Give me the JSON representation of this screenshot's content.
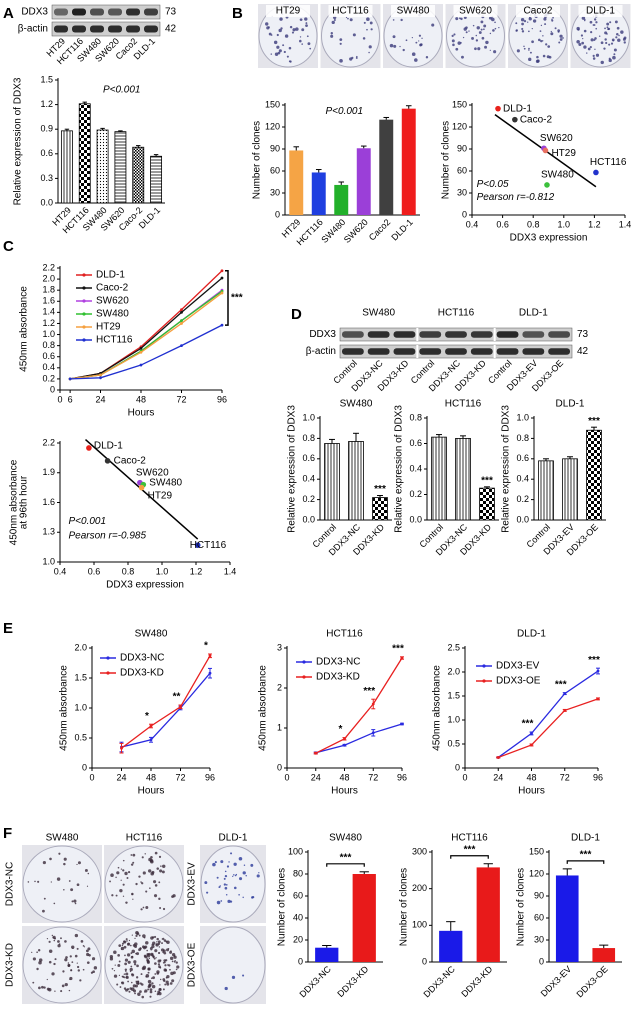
{
  "panel_labels": [
    "A",
    "B",
    "C",
    "D",
    "E",
    "F"
  ],
  "blots": [
    {
      "lanes": [
        "HT29",
        "HCT116",
        "SW480",
        "SW620",
        "Caco2",
        "DLD-1"
      ],
      "rows": [
        "DDX3",
        "β-actin"
      ],
      "sizes": [
        73,
        42
      ]
    },
    {
      "groups": [
        "SW480",
        "HCT116",
        "DLD-1"
      ],
      "lanes": [
        "Control",
        "DDX3-NC",
        "DDX3-KD",
        "Control",
        "DDX3-NC",
        "DDX3-KD",
        "Control",
        "DDX3-EV",
        "DDX3-OE"
      ],
      "rows": [
        "DDX3",
        "β-actin"
      ],
      "sizes": [
        73,
        42
      ]
    }
  ],
  "colony_images": [
    {
      "labels": [
        "HT29",
        "HCT116",
        "SW480",
        "SW620",
        "Caco2",
        "DLD-1"
      ]
    },
    {
      "columns": [
        "SW480",
        "HCT116",
        "DLD-1"
      ],
      "rows": [
        "DDX3-NC",
        "DDX3-KD"
      ],
      "rows_dld1": [
        "DDX3-EV",
        "DDX3-OE"
      ]
    }
  ],
  "chart_data": [
    {
      "type": "bar",
      "categories": [
        "HT29",
        "HCT116",
        "SW480",
        "SW620",
        "Caco-2",
        "DLD-1"
      ],
      "values": [
        0.88,
        1.21,
        0.89,
        0.87,
        0.68,
        0.57
      ],
      "errors": [
        0.02,
        0.02,
        0.02,
        0.01,
        0.02,
        0.02
      ],
      "patterns": [
        "vlines",
        "checker",
        "dots",
        "hlines",
        "dense",
        "hlines"
      ],
      "ylabel": "Relative expression of DDX3",
      "annotations": [
        "P<0.001"
      ],
      "ylim": [
        0,
        1.5
      ],
      "yticks": [
        {
          "value": 0,
          "label": "0.0"
        },
        0.3,
        0.6,
        0.9,
        1.2,
        1.5
      ]
    },
    {
      "type": "bar",
      "categories": [
        "HT29",
        "HCT116",
        "SW480",
        "SW620",
        "Caco2",
        "DLD-1"
      ],
      "values": [
        88,
        58,
        41,
        91,
        130,
        145
      ],
      "errors": [
        5,
        4,
        4,
        3,
        3,
        4
      ],
      "colors": [
        "#f5a445",
        "#1f3fe0",
        "#22b02a",
        "#9b3fd8",
        "#404040",
        "#ef1c1c"
      ],
      "ylabel": "Number of clones",
      "annotations": [
        "P<0.001"
      ],
      "ylim": [
        0,
        150
      ],
      "yticks": [
        0,
        30,
        60,
        90,
        120,
        150
      ]
    },
    {
      "type": "scatter",
      "labels": [
        "DLD-1",
        "Caco-2",
        "SW620",
        "HT29",
        "SW480",
        "HCT116"
      ],
      "x": [
        0.57,
        0.68,
        0.87,
        0.88,
        0.89,
        1.21
      ],
      "values": [
        145,
        130,
        91,
        88,
        41,
        58
      ],
      "colors": [
        "#e8221c",
        "#333333",
        "#9b3fd8",
        "#e87060",
        "#3cc03c",
        "#2233cc"
      ],
      "xlabel": "DDX3 expression",
      "ylabel": "Number of clones",
      "annotations": [
        "P<0.05",
        "Pearson r=-0.812"
      ],
      "xlim": [
        0.4,
        1.4
      ],
      "xticks": [
        0.4,
        0.6,
        0.8,
        {
          "value": 1,
          "label": "1.0"
        },
        1.2,
        1.4
      ],
      "ylim": [
        0,
        150
      ],
      "yticks": [
        0,
        30,
        60,
        90,
        120,
        150
      ]
    },
    {
      "type": "line",
      "x": [
        6,
        24,
        48,
        72,
        96
      ],
      "series": [
        {
          "name": "DLD-1",
          "color": "#e02020",
          "values": [
            0.2,
            0.3,
            0.78,
            1.45,
            2.15
          ]
        },
        {
          "name": "Caco-2",
          "color": "#111111",
          "values": [
            0.2,
            0.3,
            0.75,
            1.4,
            2.02
          ]
        },
        {
          "name": "SW620",
          "color": "#b040e0",
          "values": [
            0.2,
            0.27,
            0.7,
            1.25,
            1.8
          ]
        },
        {
          "name": "SW480",
          "color": "#30c030",
          "values": [
            0.2,
            0.27,
            0.7,
            1.25,
            1.78
          ]
        },
        {
          "name": "HT29",
          "color": "#f5a040",
          "values": [
            0.2,
            0.27,
            0.68,
            1.2,
            1.75
          ]
        },
        {
          "name": "HCT116",
          "color": "#2030d0",
          "values": [
            0.2,
            0.22,
            0.45,
            0.8,
            1.17
          ]
        }
      ],
      "xlabel": "Hours",
      "ylabel": "450nm absorbance",
      "annotations": [
        "***"
      ],
      "xlim": [
        0,
        96
      ],
      "xticks": [
        0,
        6,
        24,
        48,
        72,
        96
      ],
      "ylim": [
        0,
        2.2
      ],
      "yticks": [
        0,
        0.2,
        0.4,
        0.6,
        0.8,
        {
          "value": 1,
          "label": "1.0"
        },
        1.2,
        1.4,
        1.6,
        1.8,
        {
          "value": 2,
          "label": "2.0"
        },
        2.2
      ]
    },
    {
      "type": "scatter",
      "labels": [
        "DLD-1",
        "Caco-2",
        "SW620",
        "SW480",
        "HT29",
        "HCT116"
      ],
      "x": [
        0.57,
        0.68,
        0.87,
        0.89,
        0.88,
        1.21
      ],
      "values": [
        2.15,
        2.02,
        1.8,
        1.78,
        1.75,
        1.17
      ],
      "colors": [
        "#e8221c",
        "#333333",
        "#9b3fd8",
        "#3cc03c",
        "#f5a040",
        "#2233cc"
      ],
      "xlabel": "DDX3 expression",
      "ylabel": [
        "450nm absorbance",
        "at 96th hour"
      ],
      "annotations": [
        "P<0.001",
        "Pearson r=-0.985"
      ],
      "xlim": [
        0.4,
        1.4
      ],
      "xticks": [
        0.4,
        0.6,
        0.8,
        {
          "value": 1,
          "label": "1.0"
        },
        1.2,
        1.4
      ],
      "ylim": [
        1,
        2.2
      ],
      "yticks": [
        {
          "value": 1,
          "label": "1.0"
        },
        1.3,
        1.6,
        1.9,
        2.2
      ]
    },
    {
      "type": "bar",
      "title": "SW480",
      "categories": [
        "Control",
        "DDX3-NC",
        "DDX3-KD"
      ],
      "values": [
        0.75,
        0.77,
        0.22
      ],
      "errors": [
        0.04,
        0.08,
        0.02
      ],
      "significance": [
        null,
        null,
        "***"
      ],
      "patterns": [
        "vlines",
        "vlines",
        "checker"
      ],
      "ylabel": "Relative expression of DDX3",
      "ylim": [
        0,
        1
      ],
      "yticks": [
        {
          "value": 0,
          "label": "0.0"
        },
        0.2,
        0.4,
        0.6,
        0.8,
        {
          "value": 1,
          "label": "1.0"
        }
      ]
    },
    {
      "type": "bar",
      "title": "HCT116",
      "categories": [
        "Control",
        "DDX3-NC",
        "DDX3-KD"
      ],
      "values": [
        0.65,
        0.64,
        0.25
      ],
      "errors": [
        0.02,
        0.02,
        0.01
      ],
      "significance": [
        null,
        null,
        "***"
      ],
      "patterns": [
        "vlines",
        "vlines",
        "checker"
      ],
      "ylabel": "Relative expression of DDX3",
      "ylim": [
        0,
        0.8
      ],
      "yticks": [
        {
          "value": 0,
          "label": "0.0"
        },
        0.2,
        0.4,
        0.6,
        0.8
      ]
    },
    {
      "type": "bar",
      "title": "DLD-1",
      "categories": [
        "Control",
        "DDX3-EV",
        "DDX3-OE"
      ],
      "values": [
        0.58,
        0.6,
        0.88
      ],
      "errors": [
        0.02,
        0.02,
        0.03
      ],
      "significance": [
        null,
        null,
        "***"
      ],
      "patterns": [
        "vlines",
        "vlines",
        "checker"
      ],
      "ylabel": "Relative expression of DDX3",
      "ylim": [
        0,
        1
      ],
      "yticks": [
        {
          "value": 0,
          "label": "0.0"
        },
        0.2,
        0.4,
        0.6,
        0.8,
        {
          "value": 1,
          "label": "1.0"
        }
      ]
    },
    {
      "type": "line",
      "title": "SW480",
      "x": [
        24,
        48,
        72,
        96
      ],
      "series": [
        {
          "name": "DDX3-NC",
          "color": "#2a2ae0",
          "values": [
            0.35,
            0.47,
            1.0,
            1.58
          ],
          "errors": [
            0.08,
            0.04,
            0.03,
            0.08
          ]
        },
        {
          "name": "DDX3-KD",
          "color": "#e82020",
          "values": [
            0.33,
            0.7,
            1.02,
            1.87
          ],
          "errors": [
            0.08,
            0.03,
            0.03,
            0.03
          ]
        }
      ],
      "significance": [
        null,
        "*",
        "**",
        "*"
      ],
      "xlabel": "Hours",
      "ylabel": "450nm absorbance",
      "xlim": [
        0,
        96
      ],
      "xticks": [
        0,
        24,
        48,
        72,
        96
      ],
      "ylim": [
        0,
        2
      ],
      "yticks": [
        0,
        0.5,
        {
          "value": 1,
          "label": "1.0"
        },
        1.5,
        {
          "value": 2,
          "label": "2.0"
        }
      ]
    },
    {
      "type": "line",
      "title": "HCT116",
      "x": [
        24,
        48,
        72,
        96
      ],
      "series": [
        {
          "name": "DDX3-NC",
          "color": "#2a2ae0",
          "values": [
            0.38,
            0.57,
            0.88,
            1.1
          ],
          "errors": [
            0.02,
            0.02,
            0.08,
            0.02
          ]
        },
        {
          "name": "DDX3-KD",
          "color": "#e82020",
          "values": [
            0.37,
            0.73,
            1.6,
            2.75
          ],
          "errors": [
            0.02,
            0.03,
            0.12,
            0.03
          ]
        }
      ],
      "significance": [
        null,
        "*",
        "***",
        "***"
      ],
      "xlabel": "Hours",
      "ylabel": "450nm absorbance",
      "xlim": [
        0,
        96
      ],
      "xticks": [
        0,
        24,
        48,
        72,
        96
      ],
      "ylim": [
        0,
        3
      ],
      "yticks": [
        0,
        1,
        2,
        3
      ]
    },
    {
      "type": "line",
      "title": "DLD-1",
      "x": [
        24,
        48,
        72,
        96
      ],
      "series": [
        {
          "name": "DDX3-EV",
          "color": "#2a2ae0",
          "values": [
            0.22,
            0.72,
            1.55,
            2.02
          ],
          "errors": [
            0.01,
            0.03,
            0.02,
            0.06
          ]
        },
        {
          "name": "DDX3-OE",
          "color": "#e82020",
          "values": [
            0.22,
            0.48,
            1.2,
            1.44
          ],
          "errors": [
            0.01,
            0.02,
            0.02,
            0.02
          ]
        }
      ],
      "significance": [
        null,
        "***",
        "***",
        "***"
      ],
      "xlabel": "Hours",
      "ylabel": "450nm absorbance",
      "xlim": [
        0,
        96
      ],
      "xticks": [
        0,
        24,
        48,
        72,
        96
      ],
      "ylim": [
        0,
        2.5
      ],
      "yticks": [
        0,
        0.5,
        {
          "value": 1,
          "label": "1.0"
        },
        1.5,
        {
          "value": 2,
          "label": "2.0"
        },
        2.5
      ]
    },
    {
      "type": "bar",
      "title": "SW480",
      "categories": [
        "DDX3-NC",
        "DDX3-KD"
      ],
      "values": [
        13,
        80
      ],
      "errors": [
        2,
        2
      ],
      "colors": [
        "#1a1ae8",
        "#e81a1a"
      ],
      "ylabel": "Number of clones",
      "annotations": [
        "***"
      ],
      "ylim": [
        0,
        100
      ],
      "yticks": [
        0,
        20,
        40,
        60,
        80,
        100
      ]
    },
    {
      "type": "bar",
      "title": "HCT116",
      "categories": [
        "DDX3-NC",
        "DDX3-KD"
      ],
      "values": [
        85,
        258
      ],
      "errors": [
        25,
        10
      ],
      "colors": [
        "#1a1ae8",
        "#e81a1a"
      ],
      "ylabel": "Number of clones",
      "annotations": [
        "***"
      ],
      "ylim": [
        0,
        300
      ],
      "yticks": [
        0,
        100,
        200,
        300
      ]
    },
    {
      "type": "bar",
      "title": "DLD-1",
      "categories": [
        "DDX3-EV",
        "DDX3-OE"
      ],
      "values": [
        118,
        19
      ],
      "errors": [
        9,
        4
      ],
      "colors": [
        "#1a1ae8",
        "#e81a1a"
      ],
      "ylabel": "Number of clones",
      "annotations": [
        "***"
      ],
      "ylim": [
        0,
        150
      ],
      "yticks": [
        0,
        30,
        60,
        90,
        120,
        150
      ]
    }
  ]
}
